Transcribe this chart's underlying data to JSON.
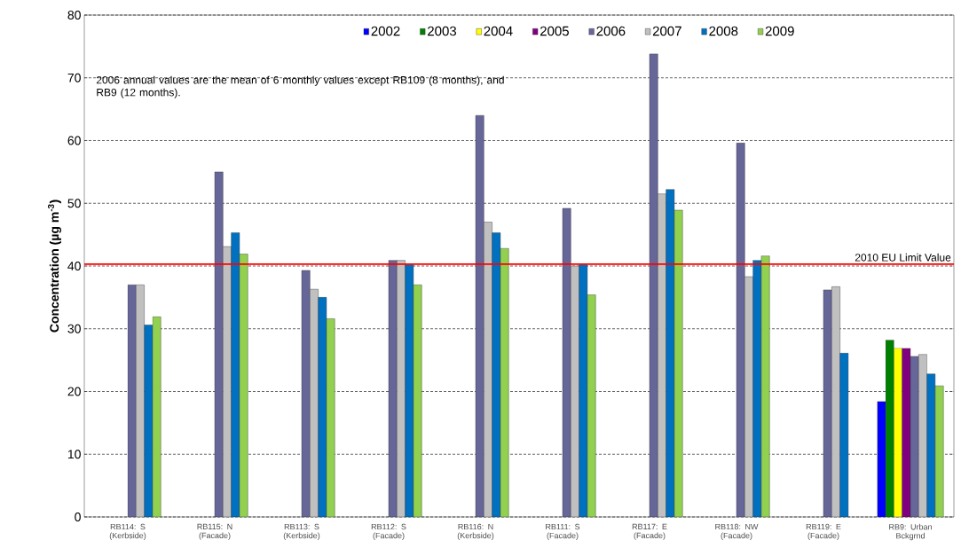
{
  "chart_data": {
    "type": "bar",
    "ylabel": "Concentration (µg m$^{-3}$)",
    "categories": [
      "RB114: S (Kerbside)",
      "RB115: N (Facade)",
      "RB113: S (Kerbside)",
      "RB112: S (Facade)",
      "RB116: N (Kerbside)",
      "RB111: S (Facade)",
      "RB117: E (Facade)",
      "RB118: NW (Facade)",
      "RB119: E (Facade)",
      "RB9: Urban Bckgrnd"
    ],
    "series": [
      {
        "name": "2002",
        "color": "#0000ff",
        "values": [
          null,
          null,
          null,
          null,
          null,
          null,
          null,
          null,
          null,
          18.4
        ]
      },
      {
        "name": "2003",
        "color": "#008000",
        "values": [
          null,
          null,
          null,
          null,
          null,
          null,
          null,
          null,
          null,
          28.2
        ]
      },
      {
        "name": "2004",
        "color": "#ffff00",
        "values": [
          null,
          null,
          null,
          null,
          null,
          null,
          null,
          null,
          null,
          26.9
        ]
      },
      {
        "name": "2005",
        "color": "#800080",
        "values": [
          null,
          null,
          null,
          null,
          null,
          null,
          null,
          null,
          null,
          26.9
        ]
      },
      {
        "name": "2006",
        "color": "#666699",
        "values": [
          37,
          55,
          39.3,
          40.9,
          64,
          49.2,
          73.8,
          59.6,
          36.2,
          25.6
        ]
      },
      {
        "name": "2007",
        "color": "#c0c0c0",
        "values": [
          37,
          43.1,
          36.3,
          40.9,
          47,
          40,
          51.5,
          38.3,
          36.7,
          25.9
        ]
      },
      {
        "name": "2008",
        "color": "#0070c0",
        "values": [
          30.6,
          45.3,
          35,
          40.2,
          45.3,
          40.2,
          52.2,
          40.9,
          26.1,
          22.8
        ]
      },
      {
        "name": "2009",
        "color": "#92d050",
        "values": [
          31.9,
          41.9,
          31.6,
          37,
          42.8,
          35.4,
          48.9,
          41.6,
          null,
          20.9
        ]
      }
    ],
    "ylim": [
      0,
      80
    ],
    "yticks": [
      0,
      10,
      20,
      30,
      40,
      50,
      60,
      70,
      80
    ],
    "grid": "y",
    "legend": "top",
    "ref_lines": [
      {
        "axis": "y",
        "value": 40.3,
        "label": "2010 EU Limit Value",
        "color": "#ff0000"
      }
    ],
    "annotations": [
      "2006 annual values are the mean of 6 monthly values except RB109 (8 months), and RB9 (12 months)."
    ]
  }
}
